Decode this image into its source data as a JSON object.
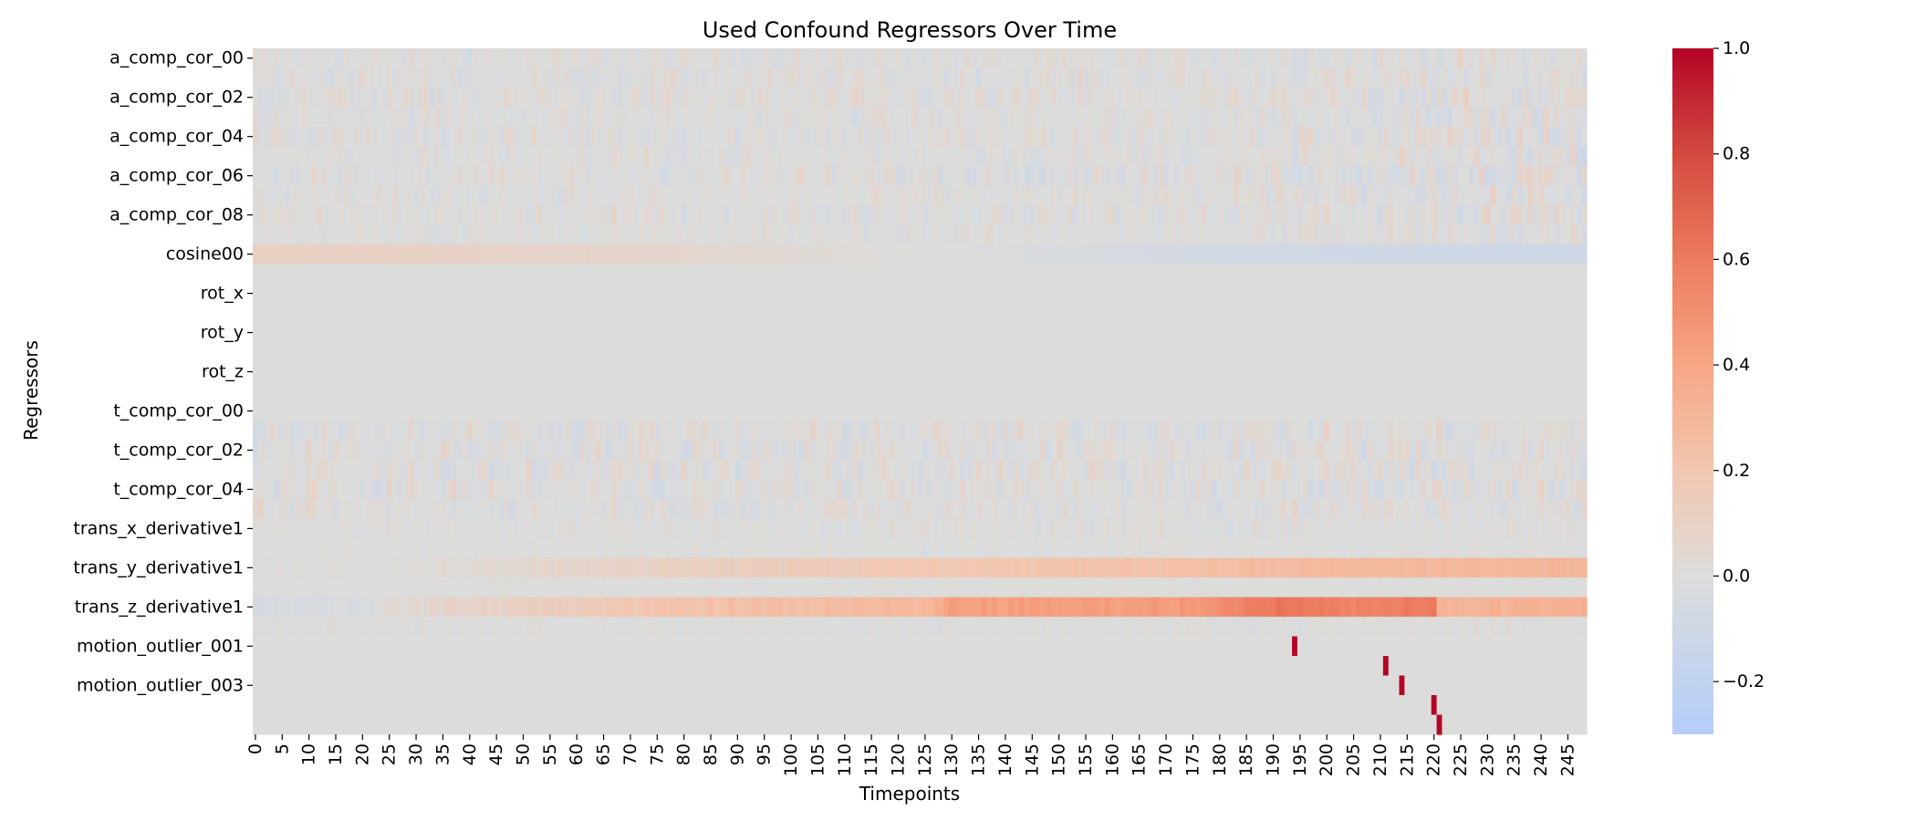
{
  "chart_data": {
    "type": "heatmap",
    "title": "Used Confound Regressors Over Time",
    "xlabel": "Timepoints",
    "ylabel": "Regressors",
    "n_timepoints": 249,
    "x_tick_step": 5,
    "x_tick_labels": [
      "0",
      "5",
      "10",
      "15",
      "20",
      "25",
      "30",
      "35",
      "40",
      "45",
      "50",
      "55",
      "60",
      "65",
      "70",
      "75",
      "80",
      "85",
      "90",
      "95",
      "100",
      "105",
      "110",
      "115",
      "120",
      "125",
      "130",
      "135",
      "140",
      "145",
      "150",
      "155",
      "160",
      "165",
      "170",
      "175",
      "180",
      "185",
      "190",
      "195",
      "200",
      "205",
      "210",
      "215",
      "220",
      "225",
      "230",
      "235",
      "240",
      "245"
    ],
    "y_tick_labels": [
      "a_comp_cor_00",
      "a_comp_cor_02",
      "a_comp_cor_04",
      "a_comp_cor_06",
      "a_comp_cor_08",
      "cosine00",
      "rot_x",
      "rot_y",
      "rot_z",
      "t_comp_cor_00",
      "t_comp_cor_02",
      "t_comp_cor_04",
      "trans_x_derivative1",
      "trans_y_derivative1",
      "trans_z_derivative1",
      "motion_outlier_001",
      "motion_outlier_003"
    ],
    "rows": [
      {
        "kind": "noise",
        "amp": 0.05,
        "grow": 1.6
      },
      {
        "kind": "noise",
        "amp": 0.06,
        "grow": 1.5
      },
      {
        "kind": "noise",
        "amp": 0.07,
        "grow": 1.6
      },
      {
        "kind": "noise",
        "amp": 0.05,
        "grow": 1.8
      },
      {
        "kind": "noise",
        "amp": 0.07,
        "grow": 1.6
      },
      {
        "kind": "noise",
        "amp": 0.05,
        "grow": 1.9
      },
      {
        "kind": "noise",
        "amp": 0.07,
        "grow": 2.0
      },
      {
        "kind": "noise",
        "amp": 0.05,
        "grow": 2.0
      },
      {
        "kind": "noise",
        "amp": 0.06,
        "grow": 2.2
      },
      {
        "kind": "noise",
        "amp": 0.04,
        "grow": 2.5
      },
      {
        "kind": "cosine",
        "amp": 0.11
      },
      {
        "kind": "const",
        "value": 0.0
      },
      {
        "kind": "const",
        "value": 0.0
      },
      {
        "kind": "const",
        "value": 0.0
      },
      {
        "kind": "const",
        "value": 0.0
      },
      {
        "kind": "const",
        "value": 0.0
      },
      {
        "kind": "const",
        "value": 0.0
      },
      {
        "kind": "const",
        "value": 0.0
      },
      {
        "kind": "const",
        "value": 0.0
      },
      {
        "kind": "noise",
        "amp": 0.08,
        "grow": 1.2
      },
      {
        "kind": "noise",
        "amp": 0.08,
        "grow": 1.2
      },
      {
        "kind": "noise",
        "amp": 0.08,
        "grow": 1.2
      },
      {
        "kind": "noise",
        "amp": 0.07,
        "grow": 1.2
      },
      {
        "kind": "noise",
        "amp": 0.07,
        "grow": 1.2
      },
      {
        "kind": "noise",
        "amp": 0.04,
        "grow": 1.0
      },
      {
        "kind": "noise",
        "amp": 0.02,
        "grow": 1.0
      },
      {
        "kind": "trend",
        "knots": [
          [
            0,
            0.0
          ],
          [
            40,
            0.03
          ],
          [
            80,
            0.12
          ],
          [
            125,
            0.18
          ],
          [
            180,
            0.25
          ],
          [
            200,
            0.28
          ],
          [
            249,
            0.3
          ]
        ],
        "amp": 0.02
      },
      {
        "kind": "noise",
        "amp": 0.01,
        "grow": 1.0
      },
      {
        "kind": "trend",
        "knots": [
          [
            0,
            -0.05
          ],
          [
            20,
            -0.02
          ],
          [
            30,
            0.05
          ],
          [
            60,
            0.15
          ],
          [
            80,
            0.22
          ],
          [
            125,
            0.28
          ],
          [
            130,
            0.42
          ],
          [
            175,
            0.45
          ],
          [
            183,
            0.55
          ],
          [
            190,
            0.62
          ],
          [
            205,
            0.55
          ],
          [
            220,
            0.6
          ],
          [
            221,
            0.3
          ],
          [
            249,
            0.35
          ]
        ],
        "amp": 0.03
      },
      {
        "kind": "noise",
        "amp": 0.03,
        "grow": 1.2
      },
      {
        "kind": "spike",
        "at": [
          194
        ]
      },
      {
        "kind": "spike",
        "at": [
          211
        ]
      },
      {
        "kind": "spike",
        "at": [
          214
        ]
      },
      {
        "kind": "spike",
        "at": [
          220
        ]
      },
      {
        "kind": "spike",
        "at": [
          221
        ]
      }
    ],
    "colorbar": {
      "vmin": -0.3,
      "vmax": 1.0,
      "ticks": [
        1.0,
        0.8,
        0.6,
        0.4,
        0.2,
        0.0,
        -0.2
      ],
      "tick_labels": [
        "1.0",
        "0.8",
        "0.6",
        "0.4",
        "0.2",
        "0.0",
        "−0.2"
      ]
    },
    "colormap_stops": [
      [
        -0.3,
        "#b4cdf9"
      ],
      [
        0.0,
        "#dcdcdb"
      ],
      [
        0.2,
        "#f2c6b0"
      ],
      [
        0.4,
        "#f6a685"
      ],
      [
        0.6,
        "#ec7b5e"
      ],
      [
        0.8,
        "#d24b40"
      ],
      [
        1.0,
        "#b40426"
      ]
    ]
  }
}
